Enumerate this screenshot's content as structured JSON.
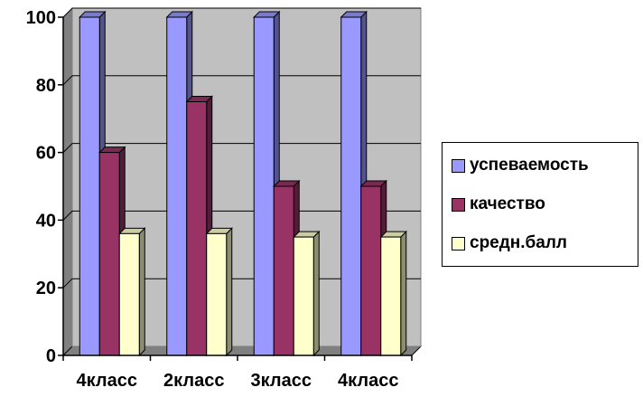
{
  "chart_data": {
    "type": "bar",
    "title": "",
    "xlabel": "",
    "ylabel": "",
    "categories": [
      "4класс",
      "2класс",
      "3класс",
      "4класс"
    ],
    "series": [
      {
        "name": "успеваемость",
        "values": [
          100,
          100,
          100,
          100
        ],
        "color": "#9999ff"
      },
      {
        "name": "качество",
        "values": [
          60,
          75,
          50,
          50
        ],
        "color": "#993366"
      },
      {
        "name": "средн.балл",
        "values": [
          36,
          36,
          35,
          35
        ],
        "color": "#ffffcc"
      }
    ],
    "ylim": [
      0,
      100
    ],
    "yticks": [
      0,
      20,
      40,
      60,
      80,
      100
    ],
    "grid": true,
    "legend_position": "right",
    "plot_background": "#c0c0c0"
  }
}
